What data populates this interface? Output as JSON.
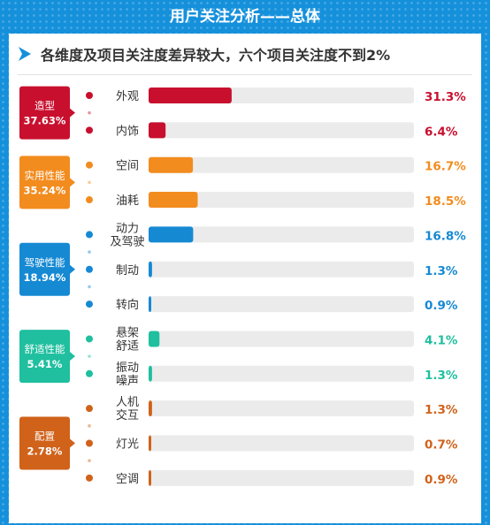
{
  "header": {
    "title": "用户关注分析——总体",
    "subtitle": "各维度及项目关注度差异较大，六个项目关注度不到2%"
  },
  "colors": {
    "background": "#1590db",
    "track": "#ebebeb"
  },
  "chart_data": {
    "type": "bar",
    "orientation": "horizontal",
    "value_unit": "%",
    "xlim": [
      0,
      100
    ],
    "groups": [
      {
        "name": "造型",
        "percent": "37.63%",
        "color": "#c8102e",
        "items": [
          {
            "label": [
              "外观"
            ],
            "value": 31.3,
            "display": "31.3%"
          },
          {
            "label": [
              "内饰"
            ],
            "value": 6.4,
            "display": "6.4%"
          }
        ]
      },
      {
        "name": "实用性能",
        "percent": "35.24%",
        "color": "#f28c1f",
        "items": [
          {
            "label": [
              "空间"
            ],
            "value": 16.7,
            "display": "16.7%"
          },
          {
            "label": [
              "油耗"
            ],
            "value": 18.5,
            "display": "18.5%"
          }
        ]
      },
      {
        "name": "驾驶性能",
        "percent": "18.94%",
        "color": "#1689d3",
        "items": [
          {
            "label": [
              "动力",
              "及驾驶"
            ],
            "value": 16.8,
            "display": "16.8%"
          },
          {
            "label": [
              "制动"
            ],
            "value": 1.3,
            "display": "1.3%"
          },
          {
            "label": [
              "转向"
            ],
            "value": 0.9,
            "display": "0.9%"
          }
        ]
      },
      {
        "name": "舒适性能",
        "percent": "5.41%",
        "color": "#1fbf9f",
        "items": [
          {
            "label": [
              "悬架",
              "舒适"
            ],
            "value": 4.1,
            "display": "4.1%"
          },
          {
            "label": [
              "振动",
              "噪声"
            ],
            "value": 1.3,
            "display": "1.3%"
          }
        ]
      },
      {
        "name": "配置",
        "percent": "2.78%",
        "color": "#d0621a",
        "items": [
          {
            "label": [
              "人机",
              "交互"
            ],
            "value": 1.3,
            "display": "1.3%"
          },
          {
            "label": [
              "灯光"
            ],
            "value": 0.7,
            "display": "0.7%"
          },
          {
            "label": [
              "空调"
            ],
            "value": 0.9,
            "display": "0.9%"
          }
        ]
      }
    ]
  }
}
